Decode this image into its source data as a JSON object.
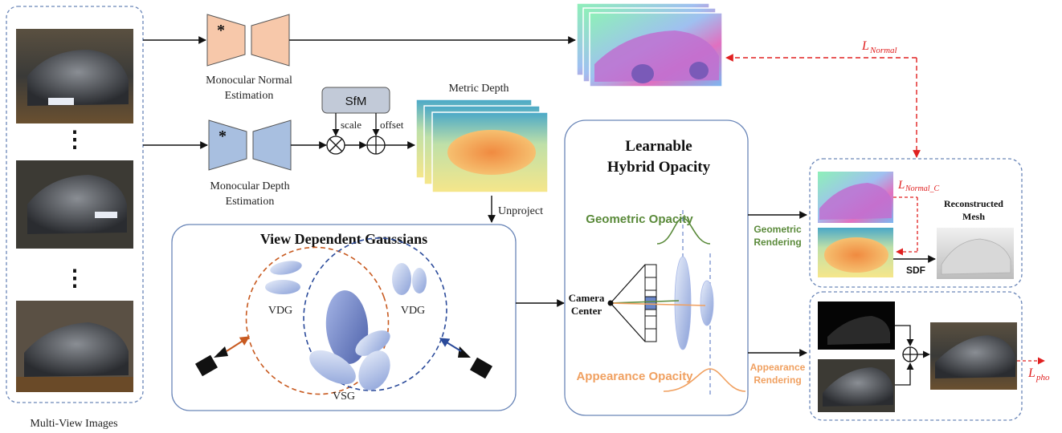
{
  "inputs": {
    "caption": "Multi-View Images",
    "ellipsis_1": "⋮",
    "ellipsis_2": "⋮"
  },
  "normal_branch": {
    "label_line1": "Monocular Normal",
    "label_line2": "Estimation",
    "frozen_mark": "*"
  },
  "depth_branch": {
    "label_line1": "Monocular Depth",
    "label_line2": "Estimation",
    "frozen_mark": "*",
    "sfm": "SfM",
    "scale": "scale",
    "offset": "offset",
    "metric_depth": "Metric Depth",
    "unproject": "Unproject"
  },
  "vdg_panel": {
    "title": "View Dependent Gaussians",
    "vdg_left": "VDG",
    "vdg_right": "VDG",
    "vsg": "VSG"
  },
  "opacity_panel": {
    "title_line1": "Learnable",
    "title_line2": "Hybrid Opacity",
    "geometric": "Geometric Opacity",
    "appearance": "Appearance Opacity",
    "camera_line1": "Camera",
    "camera_line2": "Center"
  },
  "geometric_output": {
    "render_line1": "Geometric",
    "render_line2": "Rendering",
    "mesh_line1": "Reconstructed",
    "mesh_line2": "Mesh",
    "sdf": "SDF"
  },
  "appearance_output": {
    "render_line1": "Appearance",
    "render_line2": "Rendering"
  },
  "losses": {
    "normal_L": "L",
    "normal_sub": "Normal",
    "normal_c_L": "L",
    "normal_c_sub": "Normal_C",
    "pho_L": "L",
    "pho_sub": "pho"
  },
  "colors": {
    "normal_net": "#f7c8aa",
    "depth_net": "#a8bfe0",
    "geometric": "#5a8a3a",
    "appearance": "#f0a060",
    "loss": "#e02020",
    "panel_border": "#6a86b8"
  }
}
